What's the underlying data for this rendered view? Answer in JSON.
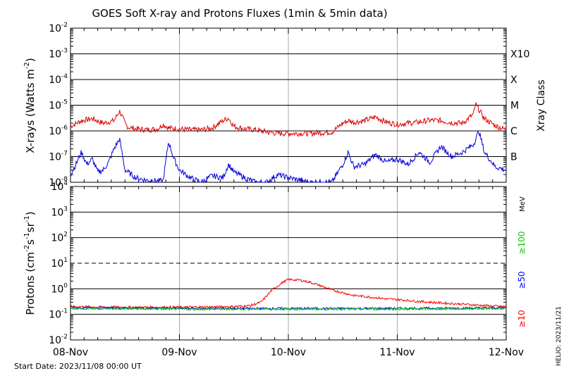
{
  "title": "GOES Soft X-ray and Protons Fluxes   (1min & 5min data)",
  "start_date": "Start Date: 2023/11/08 00:00 UT",
  "helio_stamp": "HELIO: 2023/11/21",
  "colors": {
    "xrs_long": "#dd0000",
    "xrs_short": "#0000dd",
    "p10": "#ff0000",
    "p50": "#0000ff",
    "p100": "#00cc00",
    "axis": "#000000"
  },
  "chart_data": [
    {
      "type": "line",
      "ylabel_base": "X-rays (Watts m",
      "ylabel_exp": "-2",
      "ylabel_close": ")",
      "y_scale": "log",
      "ylim": [
        1e-08,
        0.01
      ],
      "y_ticks": [
        {
          "base": "10",
          "exp": "-2",
          "value": 0.01
        },
        {
          "base": "10",
          "exp": "-3",
          "value": 0.001
        },
        {
          "base": "10",
          "exp": "-4",
          "value": 0.0001
        },
        {
          "base": "10",
          "exp": "-5",
          "value": 1e-05
        },
        {
          "base": "10",
          "exp": "-6",
          "value": 1e-06
        },
        {
          "base": "10",
          "exp": "-7",
          "value": 1e-07
        },
        {
          "base": "10",
          "exp": "-8",
          "value": 1e-08
        }
      ],
      "right_axis_label": "Xray Class",
      "right_ticks": [
        {
          "label": "X10",
          "value": 0.001
        },
        {
          "label": "X",
          "value": 0.0001
        },
        {
          "label": "M",
          "value": 1e-05
        },
        {
          "label": "C",
          "value": 1e-06
        },
        {
          "label": "B",
          "value": 1e-07
        }
      ],
      "series": [
        {
          "key": "xrs_long",
          "values_desc": "flux vs day-fraction",
          "x": [
            0.0,
            0.1,
            0.2,
            0.3,
            0.4,
            0.45,
            0.5,
            0.53,
            0.6,
            0.7,
            0.8,
            0.85,
            0.9,
            1.0,
            1.1,
            1.2,
            1.3,
            1.4,
            1.45,
            1.5,
            1.6,
            1.7,
            1.8,
            1.9,
            2.0,
            2.2,
            2.4,
            2.5,
            2.55,
            2.6,
            2.7,
            2.8,
            2.9,
            3.0,
            3.1,
            3.2,
            3.3,
            3.4,
            3.5,
            3.6,
            3.7,
            3.72,
            3.8,
            3.9,
            4.0
          ],
          "y": [
            1.5e-06,
            2.5e-06,
            3e-06,
            2e-06,
            2.5e-06,
            6e-06,
            2e-06,
            1.4e-06,
            1.2e-06,
            1.1e-06,
            1.2e-06,
            1.8e-06,
            1.3e-06,
            1.2e-06,
            1.1e-06,
            1.1e-06,
            1.3e-06,
            2.5e-06,
            3.2e-06,
            1.5e-06,
            1.2e-06,
            1.1e-06,
            9e-07,
            8e-07,
            8e-07,
            8e-07,
            9e-07,
            2e-06,
            2.5e-06,
            2.2e-06,
            2.5e-06,
            3.5e-06,
            2.2e-06,
            1.8e-06,
            2e-06,
            2.2e-06,
            2.6e-06,
            2.5e-06,
            2.1e-06,
            2e-06,
            4.5e-06,
            1.1e-05,
            3e-06,
            1.6e-06,
            1.1e-06
          ]
        },
        {
          "key": "xrs_short",
          "values_desc": "flux vs day-fraction",
          "x": [
            0.0,
            0.05,
            0.1,
            0.15,
            0.2,
            0.25,
            0.3,
            0.35,
            0.4,
            0.45,
            0.5,
            0.6,
            0.7,
            0.85,
            0.9,
            0.95,
            1.0,
            1.1,
            1.2,
            1.3,
            1.4,
            1.45,
            1.5,
            1.6,
            1.7,
            1.8,
            1.9,
            2.0,
            2.2,
            2.4,
            2.5,
            2.55,
            2.6,
            2.7,
            2.8,
            2.9,
            3.0,
            3.1,
            3.2,
            3.3,
            3.4,
            3.5,
            3.6,
            3.7,
            3.75,
            3.8,
            3.9,
            4.0
          ],
          "y": [
            2e-08,
            5e-08,
            1.5e-07,
            5e-08,
            8e-08,
            2.5e-08,
            3e-08,
            6e-08,
            2e-07,
            5e-07,
            3e-08,
            1.5e-08,
            1.2e-08,
            1.1e-08,
            4e-07,
            8e-08,
            3e-08,
            1.5e-08,
            1e-08,
            1.8e-08,
            1.5e-08,
            5e-08,
            2.5e-08,
            1.5e-08,
            1e-08,
            1e-08,
            2e-08,
            1.5e-08,
            1e-08,
            1e-08,
            5e-08,
            1.5e-07,
            4e-08,
            5e-08,
            1.2e-07,
            6e-08,
            8e-08,
            5e-08,
            1.5e-07,
            6e-08,
            2.5e-07,
            1e-07,
            1.5e-07,
            3e-07,
            1e-06,
            1.5e-07,
            4e-08,
            3e-08
          ]
        }
      ]
    },
    {
      "type": "line",
      "ylabel_base": "Protons (cm",
      "ylabel_exp1": "-2",
      "ylabel_mid1": "s",
      "ylabel_exp2": "-1",
      "ylabel_mid2": "sr",
      "ylabel_exp3": "-1",
      "ylabel_close": ")",
      "y_scale": "log",
      "ylim": [
        0.01,
        10000.0
      ],
      "y_ticks": [
        {
          "base": "10",
          "exp": "4",
          "value": 10000.0
        },
        {
          "base": "10",
          "exp": "3",
          "value": 1000.0
        },
        {
          "base": "10",
          "exp": "2",
          "value": 100.0
        },
        {
          "base": "10",
          "exp": "1",
          "value": 10.0
        },
        {
          "base": "10",
          "exp": "0",
          "value": 1.0
        },
        {
          "base": "10",
          "exp": "-1",
          "value": 0.1
        },
        {
          "base": "10",
          "exp": "-2",
          "value": 0.01
        }
      ],
      "threshold_line": 10,
      "right_unit": "MeV",
      "legend": [
        {
          "label": "≥100",
          "color": "#00cc00"
        },
        {
          "label": "≥50",
          "color": "#0000ff"
        },
        {
          "label": "≥10",
          "color": "#ff0000"
        }
      ],
      "x_ticks": [
        "08-Nov",
        "09-Nov",
        "10-Nov",
        "11-Nov",
        "12-Nov"
      ],
      "series": [
        {
          "key": "p10",
          "name": "≥10",
          "x": [
            0.0,
            0.5,
            1.0,
            1.5,
            1.65,
            1.75,
            1.85,
            1.95,
            2.0,
            2.1,
            2.2,
            2.3,
            2.4,
            2.5,
            2.6,
            2.7,
            2.8,
            2.9,
            3.0,
            3.2,
            3.4,
            3.6,
            3.8,
            4.0
          ],
          "y": [
            0.2,
            0.19,
            0.19,
            0.2,
            0.22,
            0.3,
            0.9,
            1.8,
            2.3,
            2.2,
            1.8,
            1.3,
            0.9,
            0.7,
            0.55,
            0.5,
            0.45,
            0.4,
            0.38,
            0.32,
            0.28,
            0.25,
            0.22,
            0.2
          ]
        },
        {
          "key": "p50",
          "name": "≥50",
          "x": [
            0.0,
            1.0,
            2.0,
            3.0,
            4.0
          ],
          "y": [
            0.18,
            0.17,
            0.17,
            0.17,
            0.18
          ]
        },
        {
          "key": "p100",
          "name": "≥100",
          "x": [
            0.0,
            1.0,
            2.0,
            3.0,
            4.0
          ],
          "y": [
            0.17,
            0.16,
            0.16,
            0.16,
            0.17
          ]
        }
      ]
    }
  ]
}
